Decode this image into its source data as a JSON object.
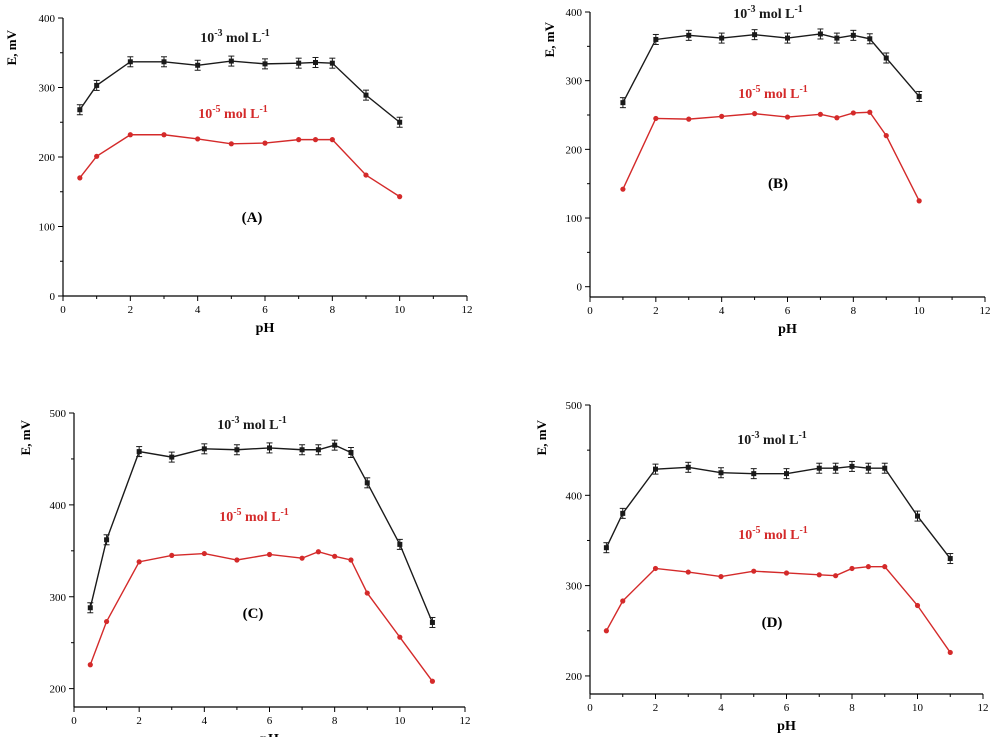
{
  "chart_data": [
    {
      "type": "line",
      "panel_label": "(A)",
      "xlabel": "pH",
      "ylabel": "E, mV",
      "xlim": [
        0,
        12
      ],
      "ylim": [
        0,
        400
      ],
      "xticks": [
        0,
        2,
        4,
        6,
        8,
        10,
        12
      ],
      "yticks": [
        0,
        100,
        200,
        300,
        400
      ],
      "grid": false,
      "series": [
        {
          "name": "10-3 mol L-1",
          "label_base": "10",
          "label_exp": "-3",
          "label_mid": " mol L",
          "label_exp2": "-1",
          "color": "#1a1a1a",
          "error_bars": true,
          "x": [
            0.5,
            1,
            2,
            3,
            4,
            5,
            6,
            7,
            7.5,
            8,
            9,
            10
          ],
          "y": [
            268,
            303,
            337,
            337,
            332,
            338,
            334,
            335,
            336,
            335,
            289,
            250
          ]
        },
        {
          "name": "10-5 mol L-1",
          "label_base": "10",
          "label_exp": "-5",
          "label_mid": " mol L",
          "label_exp2": "-1",
          "color": "#d42a2a",
          "error_bars": false,
          "x": [
            0.5,
            1,
            2,
            3,
            4,
            5,
            6,
            7,
            7.5,
            8,
            9,
            10
          ],
          "y": [
            170,
            201,
            232,
            232,
            226,
            219,
            220,
            225,
            225,
            225,
            174,
            143
          ]
        }
      ]
    },
    {
      "type": "line",
      "panel_label": "(B)",
      "xlabel": "pH",
      "ylabel": "E, mV",
      "xlim": [
        0,
        12
      ],
      "ylim": [
        -15,
        400
      ],
      "xticks": [
        0,
        2,
        4,
        6,
        8,
        10,
        12
      ],
      "yticks": [
        0,
        100,
        200,
        300,
        400
      ],
      "grid": false,
      "series": [
        {
          "name": "10-3 mol L-1",
          "label_base": "10",
          "label_exp": "-3",
          "label_mid": " mol L",
          "label_exp2": "-1",
          "color": "#1a1a1a",
          "error_bars": true,
          "x": [
            1,
            2,
            3,
            4,
            5,
            6,
            7,
            7.5,
            8,
            8.5,
            9,
            10
          ],
          "y": [
            268,
            360,
            366,
            362,
            367,
            362,
            368,
            362,
            366,
            361,
            333,
            277
          ]
        },
        {
          "name": "10-5 mol L-1",
          "label_base": "10",
          "label_exp": "-5",
          "label_mid": " mol L",
          "label_exp2": "-1",
          "color": "#d42a2a",
          "error_bars": false,
          "x": [
            1,
            2,
            3,
            4,
            5,
            6,
            7,
            7.5,
            8,
            8.5,
            9,
            10
          ],
          "y": [
            142,
            245,
            244,
            248,
            252,
            247,
            251,
            246,
            253,
            254,
            220,
            125
          ]
        }
      ]
    },
    {
      "type": "line",
      "panel_label": "(C)",
      "xlabel": "pH",
      "ylabel": "E, mV",
      "xlim": [
        0,
        12
      ],
      "ylim": [
        180,
        500
      ],
      "xticks": [
        0,
        2,
        4,
        6,
        8,
        10,
        12
      ],
      "yticks": [
        200,
        300,
        400,
        500
      ],
      "grid": false,
      "series": [
        {
          "name": "10-3 mol L-1",
          "label_base": "10",
          "label_exp": "-3",
          "label_mid": " mol L",
          "label_exp2": "-1",
          "color": "#1a1a1a",
          "error_bars": true,
          "x": [
            0.5,
            1,
            2,
            3,
            4,
            5,
            6,
            7,
            7.5,
            8,
            8.5,
            9,
            10,
            11
          ],
          "y": [
            288,
            362,
            458,
            452,
            461,
            460,
            462,
            460,
            460,
            465,
            457,
            424,
            357,
            272
          ]
        },
        {
          "name": "10-5 mol L-1",
          "label_base": "10",
          "label_exp": "-5",
          "label_mid": " mol L",
          "label_exp2": "-1",
          "color": "#d42a2a",
          "error_bars": false,
          "x": [
            0.5,
            1,
            2,
            3,
            4,
            5,
            6,
            7,
            7.5,
            8,
            8.5,
            9,
            10,
            11
          ],
          "y": [
            226,
            273,
            338,
            345,
            347,
            340,
            346,
            342,
            349,
            344,
            340,
            304,
            256,
            208
          ]
        }
      ]
    },
    {
      "type": "line",
      "panel_label": "(D)",
      "xlabel": "pH",
      "ylabel": "E, mV",
      "xlim": [
        0,
        12
      ],
      "ylim": [
        180,
        500
      ],
      "xticks": [
        0,
        2,
        4,
        6,
        8,
        10,
        12
      ],
      "yticks": [
        200,
        300,
        400,
        500
      ],
      "grid": false,
      "series": [
        {
          "name": "10-3 mol L-1",
          "label_base": "10",
          "label_exp": "-3",
          "label_mid": " mol L",
          "label_exp2": "-1",
          "color": "#1a1a1a",
          "error_bars": true,
          "x": [
            0.5,
            1,
            2,
            3,
            4,
            5,
            6,
            7,
            7.5,
            8,
            8.5,
            9,
            10,
            11
          ],
          "y": [
            342,
            380,
            429,
            431,
            425,
            424,
            424,
            430,
            430,
            432,
            430,
            430,
            377,
            330
          ]
        },
        {
          "name": "10-5 mol L-1",
          "label_base": "10",
          "label_exp": "-5",
          "label_mid": " mol L",
          "label_exp2": "-1",
          "color": "#d42a2a",
          "error_bars": false,
          "x": [
            0.5,
            1,
            2,
            3,
            4,
            5,
            6,
            7,
            7.5,
            8,
            8.5,
            9,
            10,
            11
          ],
          "y": [
            250,
            283,
            319,
            315,
            310,
            316,
            314,
            312,
            311,
            319,
            321,
            321,
            278,
            226
          ]
        }
      ]
    }
  ]
}
